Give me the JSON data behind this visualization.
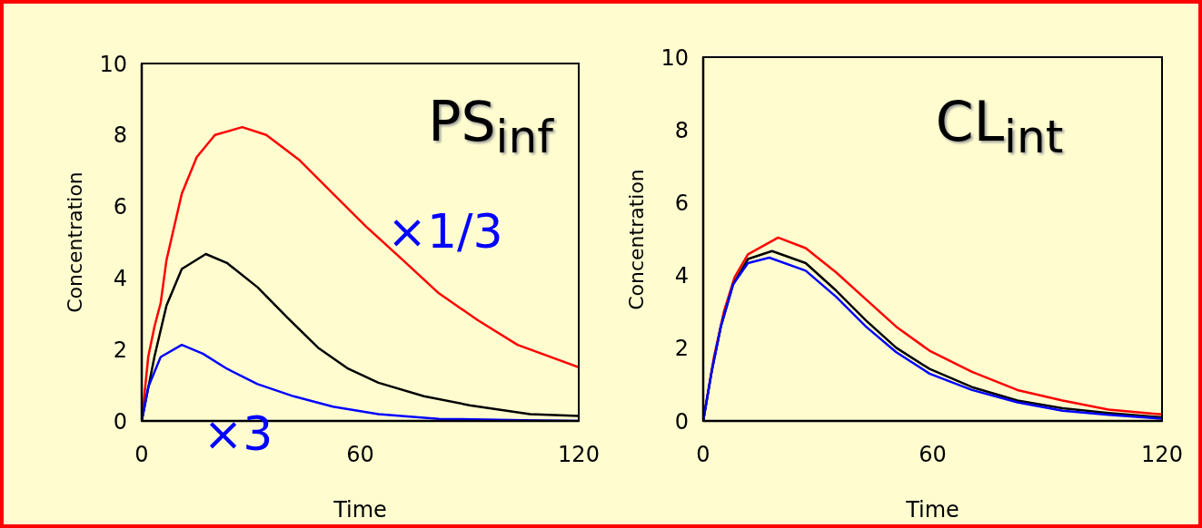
{
  "chart_data": [
    {
      "type": "line",
      "title": "PS$_{inf}$",
      "xlabel": "Time",
      "ylabel": "Concentration",
      "xlim": [
        0,
        120
      ],
      "xticks": [
        0,
        60,
        120
      ],
      "ylim": [
        0,
        10
      ],
      "yticks": [
        0,
        2,
        4,
        6,
        8,
        10
      ],
      "annotations": [
        "×1/3",
        "×3"
      ],
      "series": [
        {
          "color": "#ff0000",
          "x": [
            0,
            1.8,
            3.5,
            5.2,
            6.8,
            11,
            15.1,
            20.1,
            27.6,
            34.2,
            43.4,
            52.5,
            61.7,
            71.7,
            81.6,
            92.4,
            103.2,
            120
          ],
          "values": [
            0,
            1.8,
            2.64,
            3.3,
            4.5,
            6.36,
            7.38,
            8.0,
            8.22,
            8.0,
            7.29,
            6.36,
            5.43,
            4.5,
            3.57,
            2.81,
            2.13,
            1.5
          ]
        },
        {
          "color": "#000000",
          "x": [
            0,
            3.5,
            6.8,
            11,
            17.6,
            23.4,
            31.8,
            40,
            48.4,
            56.7,
            65,
            77.5,
            90,
            106.6,
            120
          ],
          "values": [
            0,
            1.8,
            3.23,
            4.25,
            4.67,
            4.42,
            3.74,
            2.89,
            2.05,
            1.46,
            1.07,
            0.69,
            0.44,
            0.19,
            0.14
          ]
        },
        {
          "color": "#0000ff",
          "x": [
            0,
            1.8,
            5.2,
            11,
            16.8,
            23.4,
            31.8,
            41.7,
            52.5,
            65,
            81.6,
            105,
            120
          ],
          "values": [
            0,
            0.95,
            1.79,
            2.13,
            1.88,
            1.46,
            1.03,
            0.69,
            0.4,
            0.19,
            0.06,
            0.02,
            0
          ]
        }
      ]
    },
    {
      "type": "line",
      "title": "CL$_{int}$",
      "xlabel": "Time",
      "ylabel": "Concentration",
      "xlim": [
        0,
        120
      ],
      "xticks": [
        0,
        60,
        120
      ],
      "ylim": [
        0,
        10
      ],
      "yticks": [
        0,
        2,
        4,
        6,
        8,
        10
      ],
      "series": [
        {
          "color": "#ff0000",
          "x": [
            0,
            2.8,
            5.4,
            8.2,
            11.7,
            19.6,
            26.8,
            34.7,
            42.6,
            50.5,
            59.2,
            70.3,
            82.2,
            94,
            106,
            120
          ],
          "values": [
            0,
            1.75,
            3.0,
            3.95,
            4.58,
            5.04,
            4.75,
            4.09,
            3.34,
            2.59,
            1.93,
            1.35,
            0.85,
            0.56,
            0.31,
            0.18
          ]
        },
        {
          "color": "#000000",
          "x": [
            0,
            2.2,
            4.6,
            7.8,
            11.7,
            18,
            26.8,
            34.7,
            42.6,
            50.5,
            59.2,
            70.3,
            82.2,
            94,
            106,
            120
          ],
          "values": [
            0,
            1.35,
            2.59,
            3.75,
            4.45,
            4.67,
            4.34,
            3.59,
            2.76,
            2.01,
            1.43,
            0.93,
            0.56,
            0.35,
            0.22,
            0.1
          ]
        },
        {
          "color": "#0000ff",
          "x": [
            0,
            2.2,
            4.6,
            7.8,
            11.7,
            17.3,
            26.8,
            34.7,
            42.6,
            50.5,
            59.2,
            70.3,
            82.2,
            94,
            106,
            120
          ],
          "values": [
            0,
            1.35,
            2.59,
            3.75,
            4.34,
            4.49,
            4.13,
            3.42,
            2.59,
            1.89,
            1.3,
            0.85,
            0.51,
            0.28,
            0.17,
            0.06
          ]
        }
      ]
    }
  ]
}
